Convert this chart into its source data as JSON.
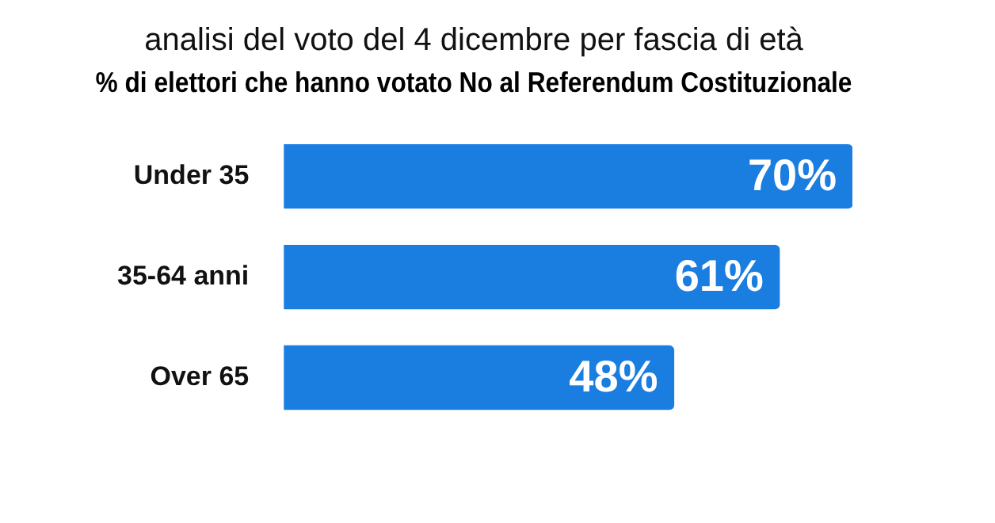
{
  "chart_data": {
    "type": "bar",
    "orientation": "horizontal",
    "title": "analisi del voto del 4 dicembre per fascia di età",
    "subtitle": "% di elettori che hanno votato No al Referendum Costituzionale",
    "categories": [
      "Under 35",
      "35-64 anni",
      "Over 65"
    ],
    "values": [
      70,
      61,
      48
    ],
    "color": "#1a7de0",
    "value_labels": [
      "70%",
      "61%",
      "48%"
    ],
    "legend": false
  }
}
